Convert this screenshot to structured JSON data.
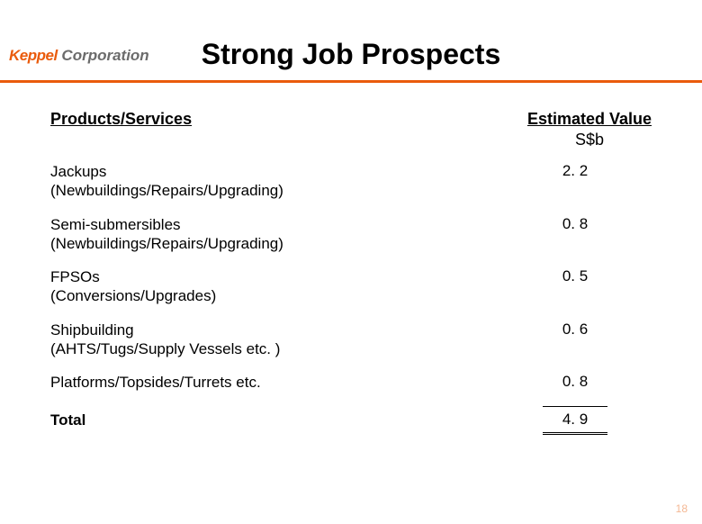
{
  "brand": {
    "name1": "Keppel",
    "name2": " Corporation",
    "accent_color": "#ea5b0c",
    "text_color": "#6b6b6b"
  },
  "title": "Strong Job Prospects",
  "headers": {
    "left": "Products/Services",
    "right": "Estimated Value",
    "right_sub": "S$b"
  },
  "rows": [
    {
      "label": "Jackups\n(Newbuildings/Repairs/Upgrading)",
      "value": "2. 2"
    },
    {
      "label": "Semi-submersibles\n(Newbuildings/Repairs/Upgrading)",
      "value": "0. 8"
    },
    {
      "label": "FPSOs\n(Conversions/Upgrades)",
      "value": "0. 5"
    },
    {
      "label": "Shipbuilding\n(AHTS/Tugs/Supply Vessels etc. )",
      "value": "0. 6"
    },
    {
      "label": "Platforms/Topsides/Turrets etc.",
      "value": "0. 8"
    }
  ],
  "total": {
    "label": "Total",
    "value": "4. 9"
  },
  "page_number": "18",
  "styling": {
    "title_fontsize": 32,
    "header_fontsize": 18,
    "body_fontsize": 17,
    "rule_color": "#ea5b0c",
    "background": "#ffffff"
  }
}
